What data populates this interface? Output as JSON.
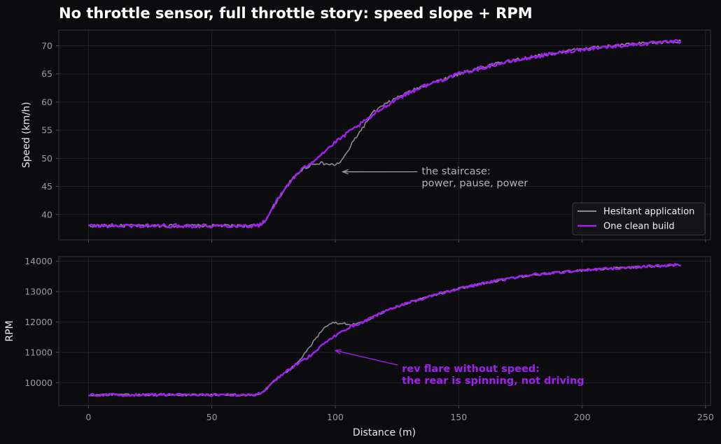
{
  "chart_data": {
    "type": "line",
    "title": "No throttle sensor, full throttle story: speed slope + RPM",
    "xlabel": "Distance (m)",
    "xlim": [
      -12,
      252
    ],
    "xticks": [
      0,
      50,
      100,
      150,
      200,
      250
    ],
    "grid": true,
    "colors": {
      "hesitant": "#8c8c8c",
      "clean": "#a020f0"
    },
    "legend": {
      "placement": "lower-right",
      "entries": [
        "Hesitant application",
        "One clean build"
      ]
    },
    "panels": [
      {
        "ylabel": "Speed (km/h)",
        "ylim": [
          35.5,
          72.8
        ],
        "yticks": [
          40,
          45,
          50,
          55,
          60,
          65,
          70
        ],
        "series": [
          {
            "name": "Hesitant application",
            "x": [
              0,
              20,
              40,
              60,
              68,
              70,
              72,
              75,
              78,
              82,
              86,
              90,
              93,
              96,
              99,
              101,
              103,
              105,
              108,
              112,
              115,
              118,
              125,
              135,
              150,
              165,
              180,
              200,
              220,
              240
            ],
            "y": [
              38,
              38,
              38,
              38,
              38,
              38.2,
              39.2,
              41.5,
              43.5,
              46,
              47.8,
              48.8,
              49.2,
              49,
              48.8,
              49,
              49.8,
              51.2,
              53.5,
              56,
              58,
              59,
              60.8,
              62.8,
              65,
              66.8,
              68.1,
              69.5,
              70.3,
              70.8
            ]
          },
          {
            "name": "One clean build",
            "x": [
              0,
              20,
              40,
              60,
              68,
              70,
              72,
              75,
              78,
              82,
              86,
              90,
              95,
              100,
              105,
              110,
              115,
              118,
              125,
              135,
              150,
              165,
              180,
              200,
              220,
              240
            ],
            "y": [
              38,
              38,
              38,
              38,
              38,
              38.2,
              39.2,
              41.5,
              43.5,
              46,
              47.8,
              49.2,
              51,
              52.8,
              54.5,
              56,
              57.5,
              58.6,
              60.6,
              62.7,
              65,
              66.7,
              68,
              69.4,
              70.2,
              70.8
            ]
          }
        ],
        "annotation": {
          "text": [
            "the staircase:",
            "power, pause, power"
          ],
          "x": 135,
          "y": 45,
          "arrow_to": [
            103,
            47.6
          ]
        }
      },
      {
        "ylabel": "RPM",
        "ylim": [
          9250,
          14150
        ],
        "yticks": [
          10000,
          11000,
          12000,
          13000,
          14000
        ],
        "series": [
          {
            "name": "Hesitant application",
            "x": [
              0,
              20,
              40,
              60,
              68,
              70,
              72,
              75,
              80,
              85,
              88,
              92,
              95,
              98,
              100,
              103,
              106,
              110,
              115,
              120,
              130,
              150,
              165,
              180,
              200,
              220,
              240
            ],
            "y": [
              9600,
              9600,
              9600,
              9600,
              9600,
              9650,
              9800,
              10050,
              10350,
              10650,
              11000,
              11450,
              11750,
              11950,
              11980,
              11950,
              11930,
              11950,
              12150,
              12350,
              12650,
              13100,
              13350,
              13550,
              13700,
              13800,
              13880
            ]
          },
          {
            "name": "One clean build",
            "x": [
              0,
              20,
              40,
              60,
              68,
              70,
              72,
              75,
              80,
              85,
              90,
              95,
              100,
              105,
              110,
              115,
              120,
              130,
              150,
              165,
              180,
              200,
              220,
              240
            ],
            "y": [
              9600,
              9600,
              9600,
              9600,
              9600,
              9650,
              9800,
              10050,
              10350,
              10650,
              10900,
              11250,
              11550,
              11800,
              11950,
              12150,
              12350,
              12650,
              13100,
              13350,
              13550,
              13700,
              13800,
              13880
            ]
          }
        ],
        "annotation": {
          "text": [
            "rev flare without speed:",
            "the rear is spinning, not driving"
          ],
          "x": 127,
          "y": 9960,
          "arrow_to": [
            100,
            11060
          ]
        }
      }
    ]
  }
}
